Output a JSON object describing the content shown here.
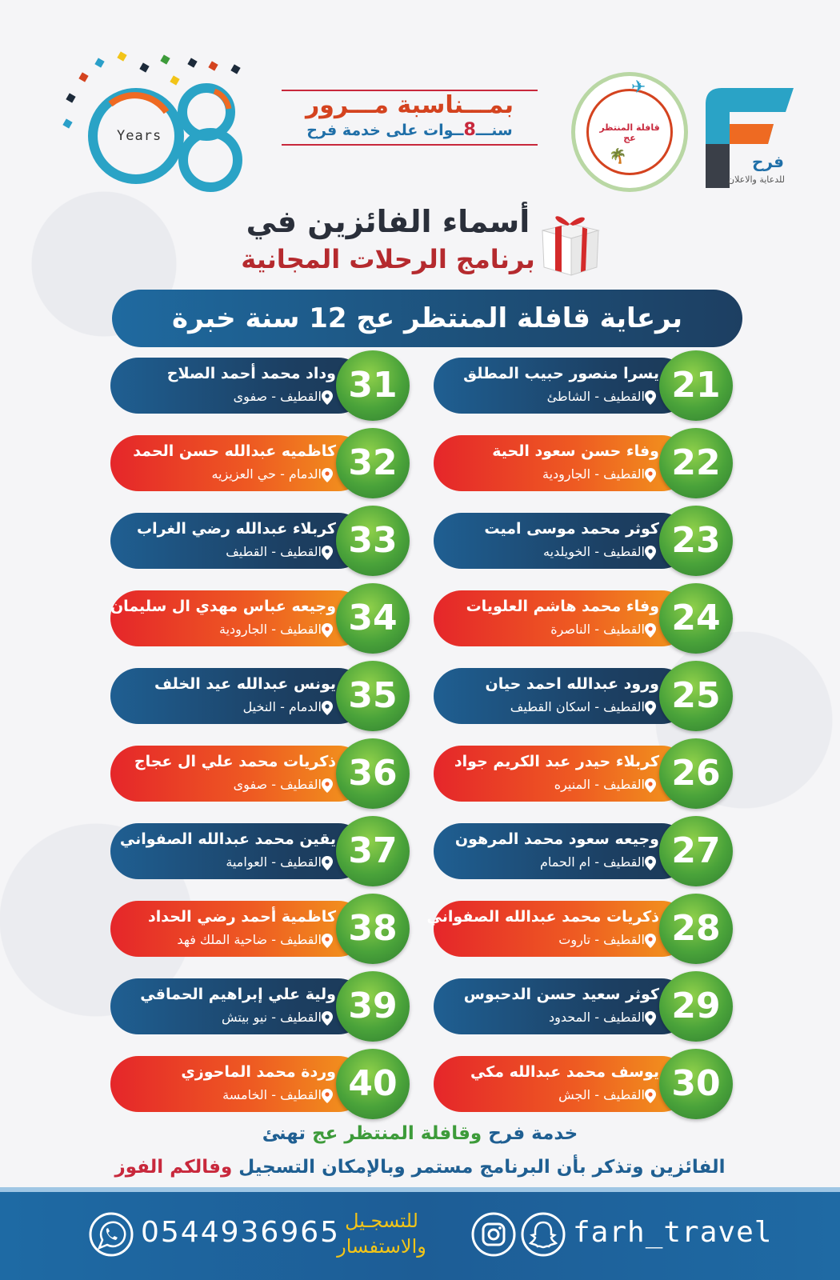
{
  "header": {
    "years_number": "08",
    "years_label": "Years",
    "occasion_title": "بمـــناسبة مـــرور",
    "occasion_sub_pre": "سنـــ",
    "occasion_sub_num": "8",
    "occasion_sub_post": "ــوات على خدمة فرح",
    "caravan_name": "قافلة المنتظر عج",
    "farah_name": "فرح",
    "farah_tagline": "للدعاية والاعلان"
  },
  "headline": {
    "line1": "أسماء الفائزين في",
    "line2": "برنامج الرحلات المجانية"
  },
  "sponsor": "برعاية قافلة المنتظر عج 12 سنة خبرة",
  "winners_right": [
    {
      "num": "21",
      "name": "يسرا منصور حبيب المطلق",
      "location": "القطيف - الشاطئ",
      "style": "blue"
    },
    {
      "num": "22",
      "name": "وفاء حسن سعود الحية",
      "location": "القطيف - الجارودية",
      "style": "orange"
    },
    {
      "num": "23",
      "name": "كوثر محمد موسى اميت",
      "location": "القطيف - الخويلديه",
      "style": "blue"
    },
    {
      "num": "24",
      "name": "وفاء محمد هاشم العلويات",
      "location": "القطيف - الناصرة",
      "style": "orange"
    },
    {
      "num": "25",
      "name": "ورود عبدالله احمد حيان",
      "location": "القطيف - اسكان القطيف",
      "style": "blue"
    },
    {
      "num": "26",
      "name": "كربلاء حيدر عبد الكريم جواد",
      "location": "القطيف - المنيره",
      "style": "orange"
    },
    {
      "num": "27",
      "name": "وجيعه سعود محمد المرهون",
      "location": "القطيف - ام الحمام",
      "style": "blue"
    },
    {
      "num": "28",
      "name": "ذكريات محمد عبدالله الصفواني",
      "location": "القطيف - تاروت",
      "style": "orange"
    },
    {
      "num": "29",
      "name": "كوثر سعيد حسن الدحبوس",
      "location": "القطيف - المحدود",
      "style": "blue"
    },
    {
      "num": "30",
      "name": "يوسف محمد عبدالله مكي",
      "location": "القطيف - الجش",
      "style": "orange"
    }
  ],
  "winners_left": [
    {
      "num": "31",
      "name": "وداد محمد أحمد الصلاح",
      "location": "القطيف - صفوى",
      "style": "blue"
    },
    {
      "num": "32",
      "name": "كاظميه عبدالله حسن الحمد",
      "location": "الدمام - حي العزيزيه",
      "style": "orange"
    },
    {
      "num": "33",
      "name": "كربلاء عبدالله رضي الغراب",
      "location": "القطيف - القطيف",
      "style": "blue"
    },
    {
      "num": "34",
      "name": "وجيعه عباس مهدي ال سليمان",
      "location": "القطيف - الجارودية",
      "style": "orange"
    },
    {
      "num": "35",
      "name": "يونس عبدالله عيد الخلف",
      "location": "الدمام - النخيل",
      "style": "blue"
    },
    {
      "num": "36",
      "name": "ذكريات محمد علي ال عجاج",
      "location": "القطيف - صفوى",
      "style": "orange"
    },
    {
      "num": "37",
      "name": "يقين محمد عبدالله الصفواني",
      "location": "القطيف - العوامية",
      "style": "blue"
    },
    {
      "num": "38",
      "name": "كاظمية أحمد رضي الحداد",
      "location": "القطيف - ضاحية الملك فهد",
      "style": "orange"
    },
    {
      "num": "39",
      "name": "ولية علي إبراهيم الحماقي",
      "location": "القطيف - نيو بيتش",
      "style": "blue"
    },
    {
      "num": "40",
      "name": "وردة محمد الماحوزي",
      "location": "القطيف - الخامسة",
      "style": "orange"
    }
  ],
  "congrats": {
    "line1_a": "خدمة فرح ",
    "line1_b": "وقافلة المنتظر عج",
    "line1_c": " تهنئ",
    "line2_a": "الفائزين وتذكر بأن البرنامج مستمر وبالإمكان التسجيل ",
    "line2_b": "وفالكم الفوز"
  },
  "footer": {
    "phone": "0544936965",
    "reg_line1": "للتسجـيل",
    "reg_line2": "والاستفسار",
    "handle": "farh_travel"
  },
  "colors": {
    "blue_card": "#1c3f62",
    "orange_card_start": "#e5262a",
    "orange_card_end": "#f29a1c",
    "number_badge": "#4aa33a",
    "footer_bg": "#1e6aa4"
  },
  "icons": {
    "location": "location-pin-icon",
    "whatsapp": "whatsapp-icon",
    "instagram": "instagram-icon",
    "snapchat": "snapchat-icon",
    "gift": "gift-box-icon"
  }
}
